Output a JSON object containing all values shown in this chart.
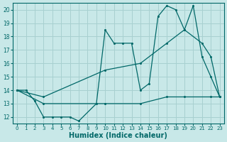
{
  "background_color": "#c8e8e8",
  "grid_color": "#a8d0d0",
  "line_color": "#006868",
  "xlabel": "Humidex (Indice chaleur)",
  "xlim": [
    -0.5,
    23.5
  ],
  "ylim": [
    11.5,
    20.5
  ],
  "xticks": [
    0,
    1,
    2,
    3,
    4,
    5,
    6,
    7,
    8,
    9,
    10,
    11,
    12,
    13,
    14,
    15,
    16,
    17,
    18,
    19,
    20,
    21,
    22,
    23
  ],
  "yticks": [
    12,
    13,
    14,
    15,
    16,
    17,
    18,
    19,
    20
  ],
  "line_jagged": {
    "x": [
      0,
      1,
      2,
      3,
      4,
      5,
      6,
      7,
      9,
      10,
      11,
      12,
      13,
      14,
      15,
      16,
      17,
      18,
      19,
      20,
      21,
      22,
      23
    ],
    "y": [
      14.0,
      14.0,
      13.2,
      12.0,
      12.0,
      12.0,
      12.0,
      11.7,
      13.0,
      18.5,
      17.5,
      17.5,
      17.5,
      14.0,
      14.5,
      19.5,
      20.3,
      20.0,
      18.5,
      20.3,
      16.5,
      15.0,
      13.5
    ]
  },
  "line_upper": {
    "x": [
      0,
      3,
      10,
      14,
      17,
      19,
      21,
      22,
      23
    ],
    "y": [
      14.0,
      13.5,
      15.5,
      16.0,
      17.5,
      18.5,
      17.5,
      16.5,
      13.5
    ]
  },
  "line_lower": {
    "x": [
      0,
      3,
      10,
      14,
      17,
      19,
      22,
      23
    ],
    "y": [
      14.0,
      13.0,
      13.0,
      13.0,
      13.5,
      13.5,
      13.5,
      13.5
    ]
  }
}
